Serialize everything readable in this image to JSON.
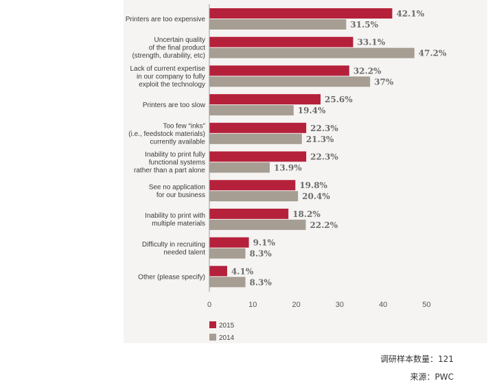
{
  "colors": {
    "series2015": "#b5213b",
    "series2014": "#a69d93",
    "axis": "#9a9a9a"
  },
  "chart_data": {
    "type": "bar",
    "orientation": "horizontal",
    "categories": [
      [
        "Printers are too expensive"
      ],
      [
        "Uncertain quality",
        "of the final product",
        "(strength, durability, etc)"
      ],
      [
        "Lack of current expertise",
        "in our company to fully",
        "exploit the technology"
      ],
      [
        "Printers are too slow"
      ],
      [
        "Too few “inks”",
        "(i.e., feedstock materials)",
        "currently available"
      ],
      [
        "Inability to print fully",
        "functional systems",
        "rather than a part alone"
      ],
      [
        "See no application",
        "for our business"
      ],
      [
        "Inability to print with",
        "multiple materials"
      ],
      [
        "Difficulty in recruiting",
        "needed talent"
      ],
      [
        "Other (please specify)"
      ]
    ],
    "series": [
      {
        "name": "2015",
        "values": [
          42.1,
          33.1,
          32.2,
          25.6,
          22.3,
          22.3,
          19.8,
          18.2,
          9.1,
          4.1
        ],
        "labels": [
          "42.1%",
          "33.1%",
          "32.2%",
          "25.6%",
          "22.3%",
          "22.3%",
          "19.8%",
          "18.2%",
          "9.1%",
          "4.1%"
        ]
      },
      {
        "name": "2014",
        "values": [
          31.5,
          47.2,
          37,
          19.4,
          21.3,
          13.9,
          20.4,
          22.2,
          8.3,
          8.3
        ],
        "labels": [
          "31.5%",
          "47.2%",
          "37%",
          "19.4%",
          "21.3%",
          "13.9%",
          "20.4%",
          "22.2%",
          "8.3%",
          "8.3%"
        ]
      }
    ],
    "xlim": [
      0,
      50
    ],
    "xticks": [
      "0",
      "10",
      "20",
      "30",
      "40",
      "50"
    ],
    "legend_position": "bottom-left",
    "grid": false
  },
  "footnotes": {
    "sample": "调研样本数量：121",
    "source": "来源：PWC"
  }
}
